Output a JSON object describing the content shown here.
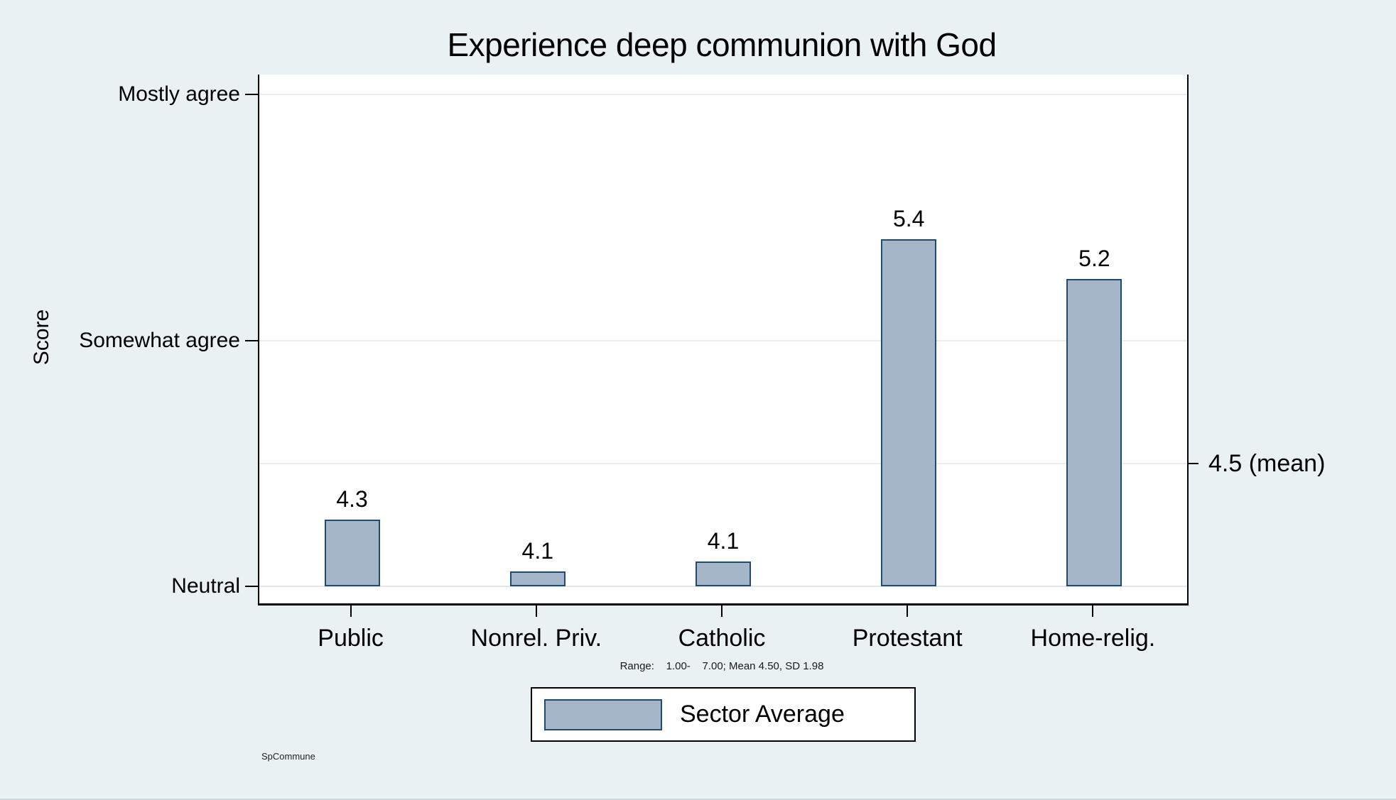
{
  "chart_data": {
    "type": "bar",
    "title": "Experience deep communion with God",
    "ylabel": "Score",
    "xlabel": "",
    "categories": [
      "Public",
      "Nonrel. Priv.",
      "Catholic",
      "Protestant",
      "Home-relig."
    ],
    "series": [
      {
        "name": "Sector Average",
        "values": [
          4.3,
          4.1,
          4.1,
          5.4,
          5.2
        ],
        "value_labels": [
          "4.3",
          "4.1",
          "4.1",
          "5.4",
          "5.2"
        ],
        "precise_values": [
          4.27,
          4.06,
          4.1,
          5.41,
          5.25
        ]
      }
    ],
    "baseline_value": 4,
    "ylim": [
      3.93,
      6.08
    ],
    "grid": true,
    "y_axis": {
      "ticks": [
        {
          "value": 4,
          "label": "Neutral"
        },
        {
          "value": 5,
          "label": "Somewhat agree"
        },
        {
          "value": 6,
          "label": "Mostly agree"
        }
      ]
    },
    "right_axis": {
      "ticks": [
        {
          "value": 4.5,
          "label": "4.5 (mean)"
        }
      ]
    },
    "legend": {
      "position": "bottom",
      "entries": [
        "Sector Average"
      ]
    },
    "note": "Range:    1.00-    7.00; Mean 4.50, SD 1.98",
    "footnote": "SpCommune",
    "colors": {
      "background": "#eaf1f2",
      "plot_background": "#ffffff",
      "bar_fill": "#a4b6c8",
      "bar_border": "#1f4a74",
      "gridline": "#e6eef1",
      "text": "#000000"
    }
  }
}
